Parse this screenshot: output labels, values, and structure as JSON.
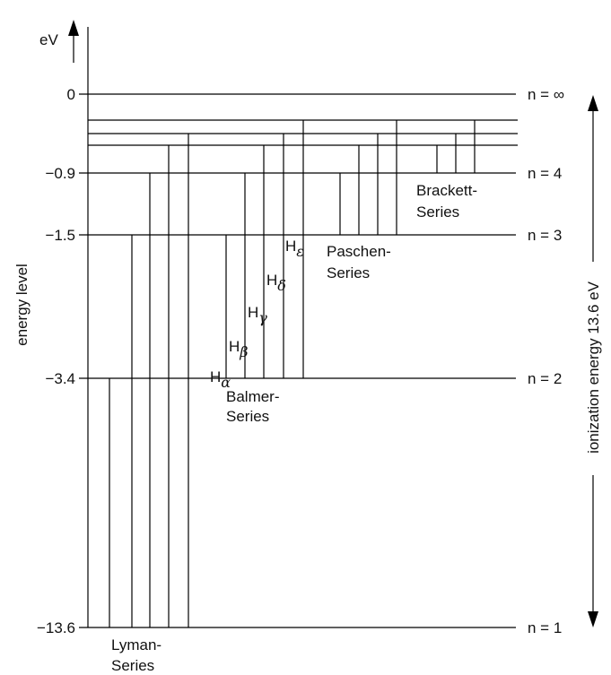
{
  "axis": {
    "unit_label": "eV",
    "ylabel": "energy level",
    "tick_labels": [
      "0",
      "−0.9",
      "−1.5",
      "−3.4",
      "−13.6"
    ]
  },
  "levels": [
    {
      "label": "n = ∞"
    },
    {
      "label": "n = 4"
    },
    {
      "label": "n = 3"
    },
    {
      "label": "n = 2"
    },
    {
      "label": "n = 1"
    }
  ],
  "series": {
    "lyman": {
      "line1": "Lyman-",
      "line2": "Series"
    },
    "balmer": {
      "line1": "Balmer-",
      "line2": "Series"
    },
    "paschen": {
      "line1": "Paschen-",
      "line2": "Series"
    },
    "brackett": {
      "line1": "Brackett-",
      "line2": "Series"
    }
  },
  "balmer_lines": [
    {
      "base": "H",
      "sub": "α"
    },
    {
      "base": "H",
      "sub": "β"
    },
    {
      "base": "H",
      "sub": "γ"
    },
    {
      "base": "H",
      "sub": "δ"
    },
    {
      "base": "H",
      "sub": "ε"
    }
  ],
  "ionization_label": "ionization energy 13.6 eV"
}
